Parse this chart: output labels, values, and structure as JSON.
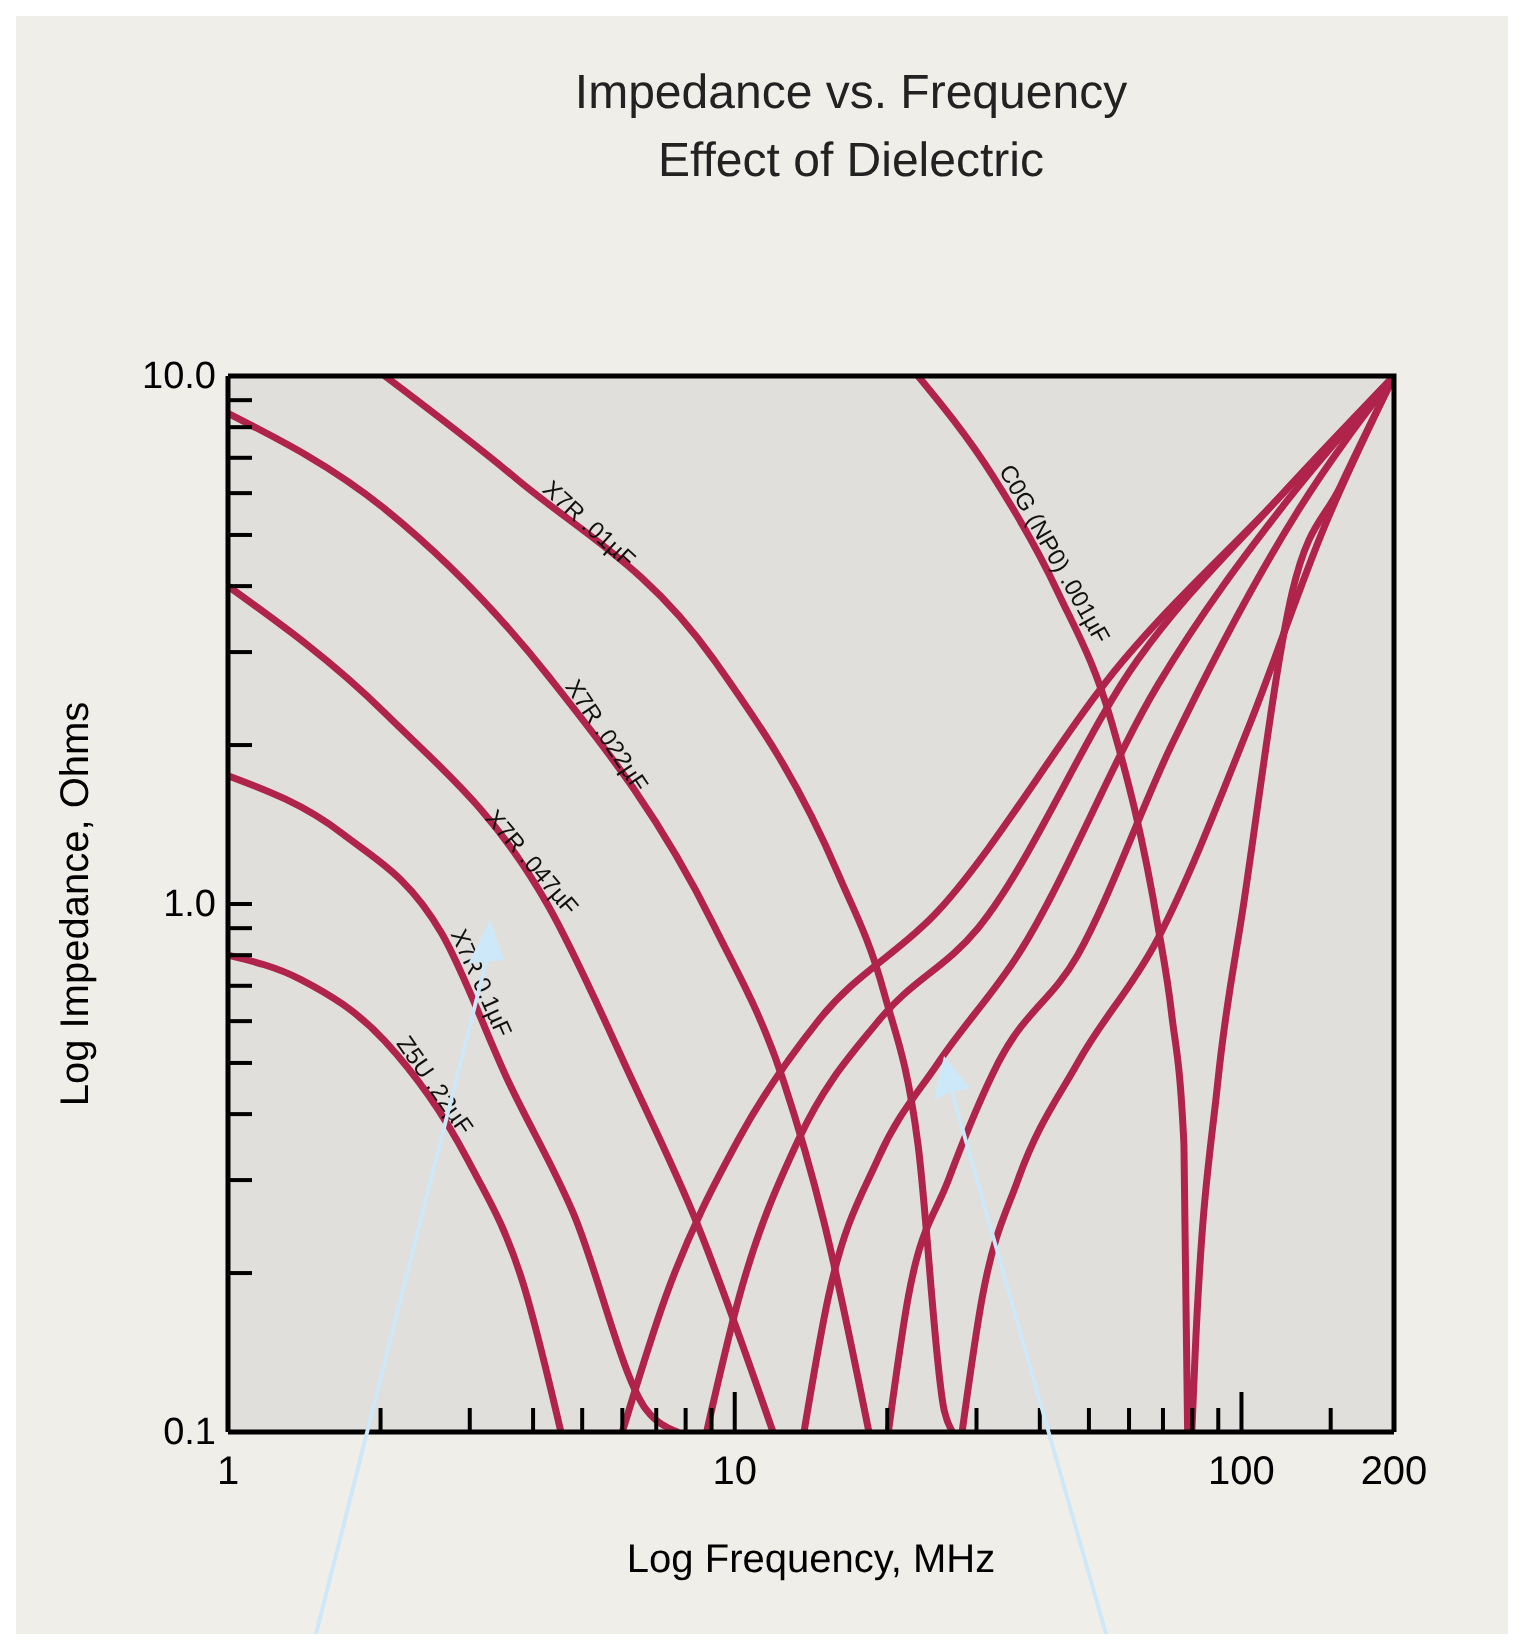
{
  "chart_data": {
    "type": "line",
    "title": "Impedance vs. Frequency",
    "subtitle": "Effect of Dielectric",
    "xlabel": "Log Frequency, MHz",
    "ylabel": "Log Impedance, Ohms",
    "log": "xy",
    "xlim": [
      1,
      200
    ],
    "ylim": [
      0.1,
      10
    ],
    "xticks": [
      1,
      {
        "value": 2,
        "label": null
      },
      {
        "value": 3,
        "label": null
      },
      {
        "value": 4,
        "label": null
      },
      {
        "value": 5,
        "label": null
      },
      {
        "value": 6,
        "label": null
      },
      {
        "value": 7,
        "label": null
      },
      {
        "value": 8,
        "label": null
      },
      {
        "value": 9,
        "label": null
      },
      10,
      {
        "value": 20,
        "label": null
      },
      {
        "value": 30,
        "label": null
      },
      {
        "value": 40,
        "label": null
      },
      {
        "value": 50,
        "label": null
      },
      {
        "value": 60,
        "label": null
      },
      {
        "value": 70,
        "label": null
      },
      {
        "value": 80,
        "label": null
      },
      {
        "value": 90,
        "label": null
      },
      100,
      {
        "value": 150,
        "label": null
      },
      200
    ],
    "yticks": [
      {
        "value": 0.1,
        "label": "0.1"
      },
      {
        "value": 0.2,
        "label": null
      },
      {
        "value": 0.3,
        "label": null
      },
      {
        "value": 0.4,
        "label": null
      },
      {
        "value": 0.5,
        "label": null
      },
      {
        "value": 0.6,
        "label": null
      },
      {
        "value": 0.7,
        "label": null
      },
      {
        "value": 0.8,
        "label": null
      },
      {
        "value": 0.9,
        "label": null
      },
      {
        "value": 1,
        "label": "1.0"
      },
      {
        "value": 2,
        "label": null
      },
      {
        "value": 3,
        "label": null
      },
      {
        "value": 4,
        "label": null
      },
      {
        "value": 5,
        "label": null
      },
      {
        "value": 6,
        "label": null
      },
      {
        "value": 7,
        "label": null
      },
      {
        "value": 8,
        "label": null
      },
      {
        "value": 9,
        "label": null
      },
      {
        "value": 10,
        "label": "10.0"
      }
    ],
    "series": [
      {
        "name": "X7R .01µF",
        "color": "#b0244b",
        "x": [
          2.04,
          3.7,
          9.1,
          16.0,
          19.7,
          23,
          25.9,
          26.9,
          27.5,
          28.1,
          30.8,
          36.2,
          47.5,
          68.4,
          104,
          146,
          200
        ],
        "values": [
          10,
          6.4,
          2.9,
          1.14,
          0.68,
          0.35,
          0.11,
          0.1,
          null,
          0.1,
          0.18,
          0.3,
          0.5,
          0.86,
          2.2,
          5.2,
          10
        ]
      },
      {
        "name": "X7R .022µF",
        "color": "#b0244b",
        "x": [
          1,
          2.04,
          4.29,
          9.1,
          12.5,
          15.0,
          18.4,
          19.2,
          20.1,
          22,
          26.4,
          33.1,
          47.5,
          72.8,
          130,
          200
        ],
        "values": [
          8.5,
          5.6,
          2.7,
          0.91,
          0.46,
          0.25,
          0.1,
          null,
          0.1,
          0.18,
          0.3,
          0.5,
          0.8,
          2.0,
          5.6,
          10
        ]
      },
      {
        "name": "X7R .047µF",
        "color": "#b0244b",
        "x": [
          1,
          2.04,
          4.29,
          6.3,
          8.4,
          11.9,
          12.8,
          13.7,
          15.3,
          19.2,
          25.2,
          36.2,
          68.4,
          123,
          200
        ],
        "values": [
          4.0,
          2.3,
          0.99,
          0.46,
          0.25,
          0.1,
          null,
          0.1,
          0.18,
          0.33,
          0.5,
          0.8,
          2.6,
          5.8,
          10
        ]
      },
      {
        "name": "X7R 0.1µF",
        "color": "#b0244b",
        "x": [
          1,
          1.68,
          2.64,
          3.58,
          4.8,
          6.7,
          7.7,
          8.2,
          8.8,
          10.2,
          13.4,
          19.2,
          30.2,
          62.4,
          117,
          200
        ],
        "values": [
          1.75,
          1.36,
          0.88,
          0.46,
          0.26,
          0.11,
          0.1,
          null,
          0.1,
          0.18,
          0.36,
          0.6,
          0.9,
          2.9,
          5.8,
          10
        ]
      },
      {
        "name": "Z5U .22µF",
        "color": "#b0244b",
        "x": [
          1,
          1.39,
          2.04,
          2.96,
          3.83,
          4.54,
          5.3,
          6.0,
          7.3,
          10.2,
          14.6,
          25.2,
          58.6,
          117,
          200
        ],
        "values": [
          0.8,
          0.72,
          0.55,
          0.33,
          0.19,
          0.1,
          null,
          0.1,
          0.18,
          0.36,
          0.6,
          0.97,
          2.9,
          5.8,
          10
        ]
      },
      {
        "name": "C0G (NP0) .001µF",
        "color": "#b0244b",
        "x": [
          23,
          32.2,
          43.4,
          55.5,
          68.4,
          72.8,
          77,
          78.3,
          79,
          79.8,
          81,
          89.8,
          101,
          126,
          157,
          200
        ],
        "values": [
          10,
          6.5,
          3.9,
          2.2,
          0.91,
          0.62,
          0.35,
          0.1,
          null,
          0.1,
          0.14,
          0.46,
          1.0,
          3.9,
          6.2,
          10
        ]
      }
    ]
  }
}
